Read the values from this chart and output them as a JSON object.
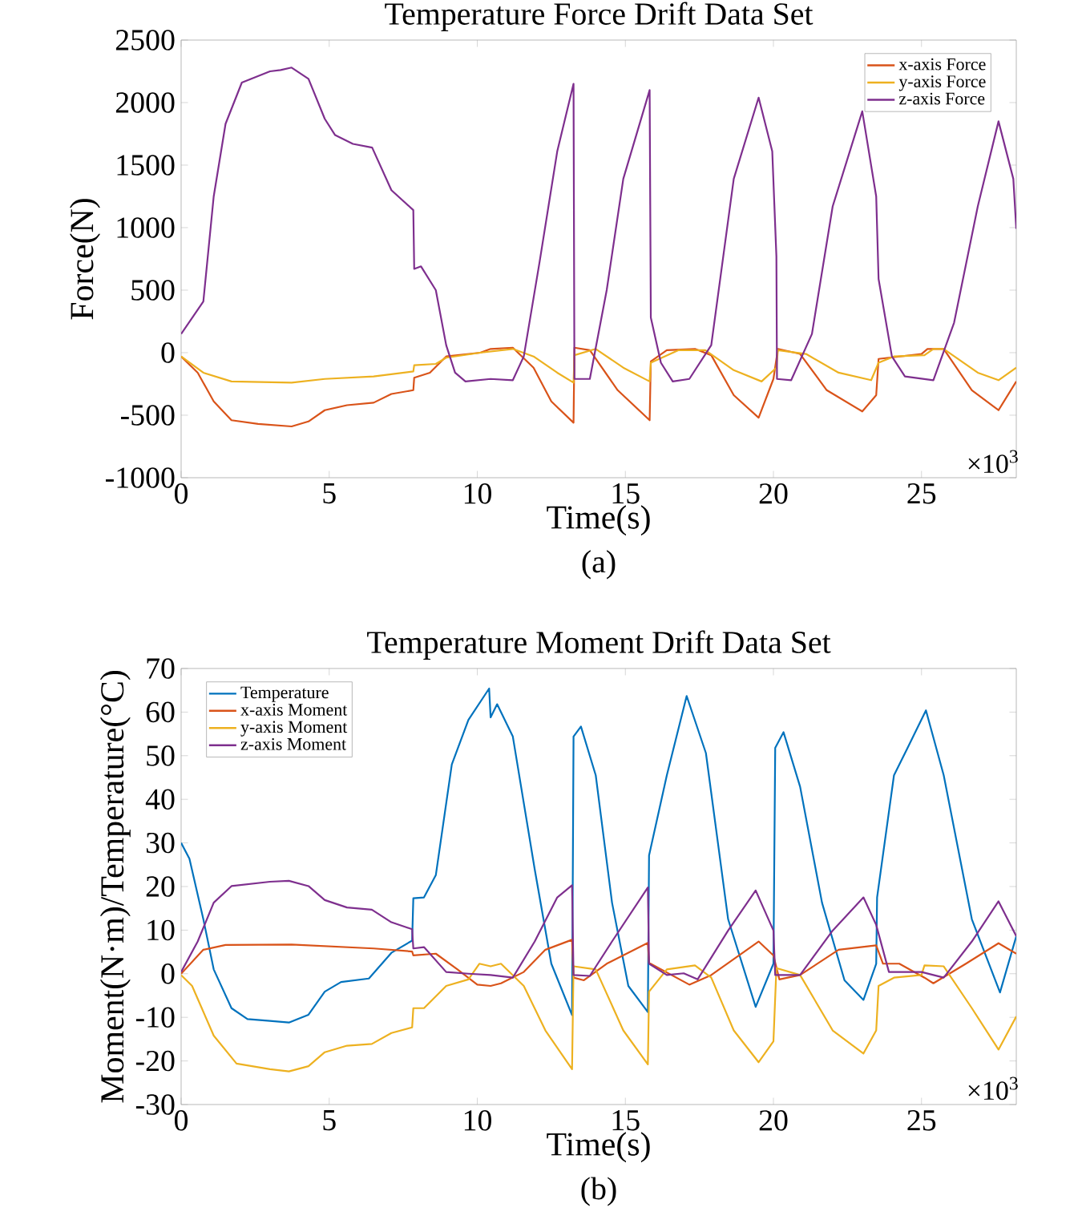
{
  "chart_data": [
    {
      "type": "line",
      "title": "Temperature Force Drift Data Set",
      "xlabel": "Time(s)",
      "ylabel": "Force(N)",
      "annotations": [
        "×10$^{3}$",
        "(a)"
      ],
      "xlim": [
        0,
        28.2
      ],
      "ylim": [
        -1000,
        2500
      ],
      "xticks": [
        0,
        5,
        10,
        15,
        20,
        25
      ],
      "yticks": [
        -1000,
        -500,
        0,
        500,
        1000,
        1500,
        2000,
        2500
      ],
      "legend": "top right",
      "series": [
        {
          "name": "x-axis Force",
          "color": "#d95319",
          "x": [
            0,
            0.56,
            1.1,
            1.7,
            2.6,
            3.73,
            4.3,
            4.85,
            5.6,
            6.5,
            7.1,
            7.84,
            7.87,
            8.4,
            8.95,
            10.1,
            10.45,
            11.2,
            11.9,
            12.5,
            13.25,
            13.28,
            13.8,
            14.74,
            15.82,
            15.86,
            16.4,
            17.35,
            17.9,
            18.66,
            19.5,
            20.0,
            20.15,
            20.9,
            21.8,
            23.0,
            23.47,
            23.55,
            25.0,
            25.2,
            25.75,
            26.7,
            27.6,
            28.2
          ],
          "values": [
            -30,
            -160,
            -390,
            -540,
            -570,
            -590,
            -550,
            -460,
            -420,
            -400,
            -330,
            -300,
            -200,
            -160,
            -30,
            0,
            30,
            40,
            -120,
            -390,
            -560,
            40,
            20,
            -300,
            -540,
            -70,
            20,
            30,
            -20,
            -340,
            -520,
            -210,
            30,
            -10,
            -300,
            -470,
            -340,
            -50,
            -10,
            30,
            30,
            -300,
            -460,
            -230
          ]
        },
        {
          "name": "y-axis Force",
          "color": "#edb120",
          "x": [
            0,
            0.75,
            1.7,
            3.73,
            4.85,
            6.5,
            7.84,
            7.87,
            8.6,
            8.95,
            10.1,
            11.2,
            11.9,
            12.7,
            13.25,
            13.28,
            14.0,
            14.93,
            15.82,
            15.86,
            16.8,
            17.7,
            18.66,
            19.6,
            20.1,
            20.15,
            21.1,
            22.2,
            23.3,
            23.55,
            24.07,
            25.1,
            25.4,
            25.75,
            26.9,
            27.6,
            28.2
          ],
          "values": [
            -30,
            -160,
            -230,
            -240,
            -210,
            -190,
            -150,
            -100,
            -90,
            -40,
            0,
            30,
            -30,
            -160,
            -240,
            -20,
            30,
            -120,
            -230,
            -80,
            20,
            20,
            -140,
            -230,
            -120,
            20,
            -10,
            -160,
            -220,
            -80,
            -30,
            -20,
            30,
            30,
            -160,
            -220,
            -120
          ]
        },
        {
          "name": "z-axis Force",
          "color": "#7e2f8e",
          "x": [
            0,
            0.75,
            1.1,
            1.5,
            2.05,
            3.0,
            3.36,
            3.73,
            4.3,
            4.85,
            5.2,
            5.8,
            6.45,
            7.1,
            7.84,
            7.87,
            8.1,
            8.6,
            8.95,
            9.25,
            9.6,
            10.45,
            11.2,
            11.57,
            12.1,
            12.7,
            13.25,
            13.28,
            13.8,
            14.37,
            14.93,
            15.82,
            15.86,
            16.2,
            16.6,
            17.16,
            17.9,
            18.66,
            19.5,
            19.96,
            20.1,
            20.12,
            20.6,
            21.3,
            22.0,
            23.0,
            23.47,
            23.55,
            24.0,
            24.44,
            25.4,
            26.1,
            26.9,
            27.6,
            28.1,
            28.2
          ],
          "values": [
            150,
            410,
            1250,
            1830,
            2160,
            2250,
            2260,
            2280,
            2190,
            1870,
            1740,
            1670,
            1640,
            1300,
            1140,
            670,
            690,
            500,
            60,
            -160,
            -230,
            -210,
            -220,
            -30,
            720,
            1610,
            2150,
            -210,
            -210,
            500,
            1390,
            2100,
            280,
            -80,
            -230,
            -210,
            60,
            1390,
            2040,
            1610,
            770,
            -210,
            -220,
            150,
            1170,
            1930,
            1250,
            590,
            -30,
            -190,
            -220,
            240,
            1170,
            1850,
            1390,
            990
          ]
        }
      ]
    },
    {
      "type": "line",
      "title": "Temperature Moment Drift Data Set",
      "xlabel": "Time(s)",
      "ylabel": "Moment(N·m)/Temperature(°C)",
      "annotations": [
        "×10$^{3}$",
        "(b)"
      ],
      "xlim": [
        0,
        28.2
      ],
      "ylim": [
        -30,
        70
      ],
      "xticks": [
        0,
        5,
        10,
        15,
        20,
        25
      ],
      "yticks": [
        -30,
        -20,
        -10,
        0,
        10,
        20,
        30,
        40,
        50,
        60,
        70
      ],
      "legend": "top left",
      "series": [
        {
          "name": "Temperature",
          "color": "#0072bd",
          "x": [
            0,
            0.28,
            0.75,
            1.1,
            1.7,
            2.24,
            3.0,
            3.64,
            4.3,
            4.85,
            5.4,
            6.34,
            7.1,
            7.8,
            7.84,
            8.2,
            8.6,
            9.14,
            9.7,
            10.4,
            10.45,
            10.67,
            11.2,
            11.94,
            12.5,
            13.2,
            13.25,
            13.5,
            14.0,
            14.55,
            15.1,
            15.76,
            15.8,
            16.4,
            17.07,
            17.72,
            18.47,
            19.4,
            20.0,
            20.06,
            20.34,
            20.9,
            21.64,
            22.4,
            23.04,
            23.47,
            23.5,
            24.07,
            24.53,
            25.15,
            25.75,
            26.7,
            27.65,
            28.2
          ],
          "values": [
            30,
            26.4,
            12.5,
            1.0,
            -7.9,
            -10.4,
            -10.8,
            -11.2,
            -9.4,
            -4.1,
            -1.9,
            -1.1,
            4.8,
            7.6,
            17.3,
            17.5,
            22.6,
            48,
            58.2,
            65.4,
            58.8,
            61.8,
            54.4,
            23.9,
            2.3,
            -9.5,
            54.4,
            56.7,
            45.5,
            16.3,
            -2.8,
            -8.8,
            27.1,
            45.5,
            63.7,
            50.6,
            12.5,
            -7.6,
            2.3,
            51.8,
            55.4,
            42.9,
            16.3,
            -1.5,
            -6.0,
            2.3,
            17.5,
            45.5,
            51.8,
            60.4,
            45.5,
            12.5,
            -4.3,
            8.6
          ]
        },
        {
          "name": "x-axis Moment",
          "color": "#d95319",
          "x": [
            0,
            0.75,
            1.5,
            3.73,
            6.5,
            7.8,
            7.84,
            8.6,
            9.33,
            10.0,
            10.45,
            10.8,
            11.57,
            12.3,
            13.2,
            13.25,
            13.6,
            14.37,
            15.76,
            15.8,
            17.16,
            17.9,
            19.5,
            20.0,
            20.2,
            20.9,
            22.2,
            23.47,
            23.7,
            24.25,
            25.1,
            25.4,
            26.5,
            27.6,
            28.2
          ],
          "values": [
            0,
            5.5,
            6.6,
            6.7,
            5.8,
            5.1,
            4.2,
            4.6,
            1.0,
            -2.5,
            -2.8,
            -2.2,
            0.4,
            5.5,
            7.8,
            -0.9,
            -1.5,
            2.3,
            7.1,
            2.5,
            -2.5,
            -0.3,
            7.4,
            4.2,
            -1.3,
            -0.3,
            5.5,
            6.5,
            2.3,
            2.3,
            -0.9,
            -2.2,
            2.3,
            7.0,
            4.6
          ]
        },
        {
          "name": "y-axis Moment",
          "color": "#edb120",
          "x": [
            0,
            0.37,
            1.1,
            1.87,
            3.0,
            3.64,
            4.3,
            4.85,
            5.6,
            6.44,
            7.1,
            7.8,
            7.84,
            8.2,
            8.95,
            9.7,
            10.07,
            10.45,
            10.8,
            11.57,
            12.3,
            13.2,
            13.25,
            14.0,
            14.93,
            15.76,
            15.8,
            16.4,
            17.35,
            17.9,
            18.66,
            19.5,
            20.0,
            20.1,
            20.9,
            22.0,
            23.04,
            23.47,
            23.55,
            24.07,
            25.0,
            25.1,
            25.75,
            26.7,
            27.6,
            28.2
          ],
          "values": [
            -0.3,
            -2.8,
            -14.2,
            -20.6,
            -21.9,
            -22.4,
            -21.2,
            -18.0,
            -16.5,
            -16.1,
            -13.6,
            -12.3,
            -7.9,
            -7.9,
            -2.8,
            -1.3,
            2.3,
            1.7,
            2.3,
            -2.8,
            -13.0,
            -21.9,
            1.7,
            1.0,
            -13.0,
            -20.8,
            -4.1,
            1.0,
            1.9,
            -0.9,
            -13.0,
            -20.3,
            -15.5,
            1.3,
            -0.3,
            -13.0,
            -18.3,
            -13.0,
            -2.8,
            -0.9,
            -0.3,
            1.9,
            1.7,
            -7.9,
            -17.4,
            -9.8
          ]
        },
        {
          "name": "z-axis Moment",
          "color": "#7e2f8e",
          "x": [
            0,
            0.56,
            1.1,
            1.7,
            3.0,
            3.64,
            4.3,
            4.85,
            5.6,
            6.44,
            7.1,
            7.8,
            7.84,
            8.2,
            8.95,
            9.7,
            10.45,
            11.2,
            11.94,
            12.7,
            13.2,
            13.25,
            13.8,
            14.55,
            15.76,
            15.8,
            16.4,
            16.97,
            17.44,
            18.47,
            19.4,
            20.0,
            20.06,
            20.9,
            22.0,
            23.04,
            23.47,
            23.9,
            25.0,
            25.75,
            26.7,
            27.6,
            28.2
          ],
          "values": [
            0.4,
            7.4,
            16.3,
            20.1,
            21.1,
            21.3,
            20.1,
            16.9,
            15.2,
            14.7,
            11.8,
            10.2,
            5.8,
            6.1,
            0.4,
            0,
            -0.3,
            -0.9,
            7.4,
            17.5,
            20.3,
            -0.3,
            -0.5,
            7.4,
            19.8,
            2.3,
            -0.3,
            0.1,
            -1.3,
            9.9,
            19.1,
            9.9,
            -0.3,
            -0.3,
            9.9,
            17.5,
            11.2,
            0.4,
            0.4,
            -0.9,
            7.4,
            16.6,
            8.6
          ]
        }
      ]
    }
  ]
}
